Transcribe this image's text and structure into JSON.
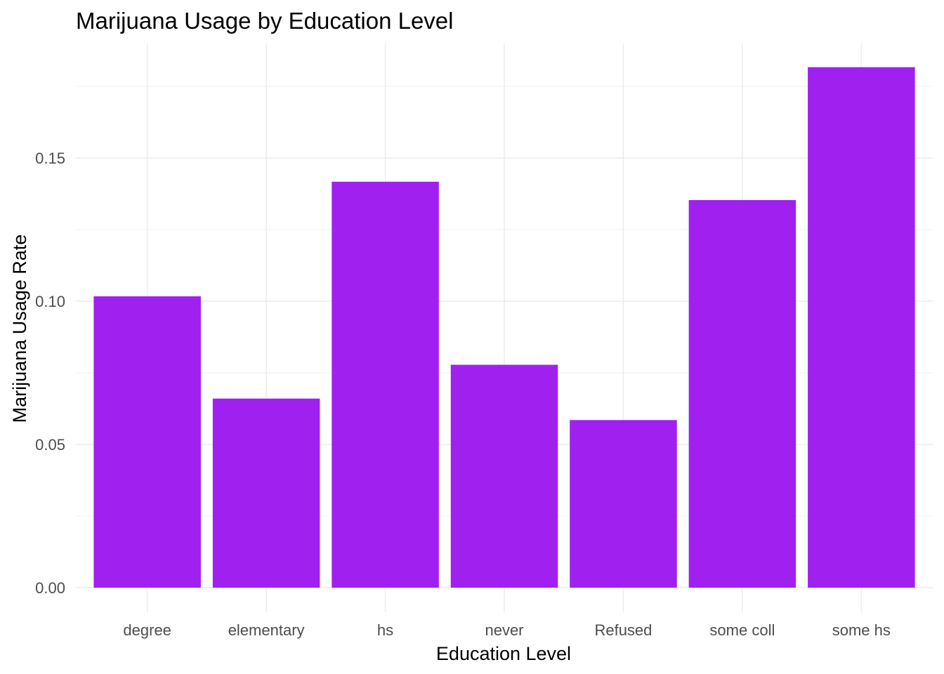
{
  "chart_data": {
    "type": "bar",
    "title": "Marijuana Usage by Education Level",
    "xlabel": "Education Level",
    "ylabel": "Marijuana Usage Rate",
    "categories": [
      "degree",
      "elementary",
      "hs",
      "never",
      "Refused",
      "some coll",
      "some hs"
    ],
    "values": [
      0.1017,
      0.066,
      0.1417,
      0.0778,
      0.0585,
      0.1353,
      0.1817
    ],
    "ylim": [
      0,
      0.1908
    ],
    "yticks": [
      0.0,
      0.05,
      0.1,
      0.15
    ],
    "ytick_labels": [
      "0.00",
      "0.05",
      "0.10",
      "0.15"
    ],
    "bar_color": "#a020f0",
    "grid": true,
    "legend": "none"
  }
}
